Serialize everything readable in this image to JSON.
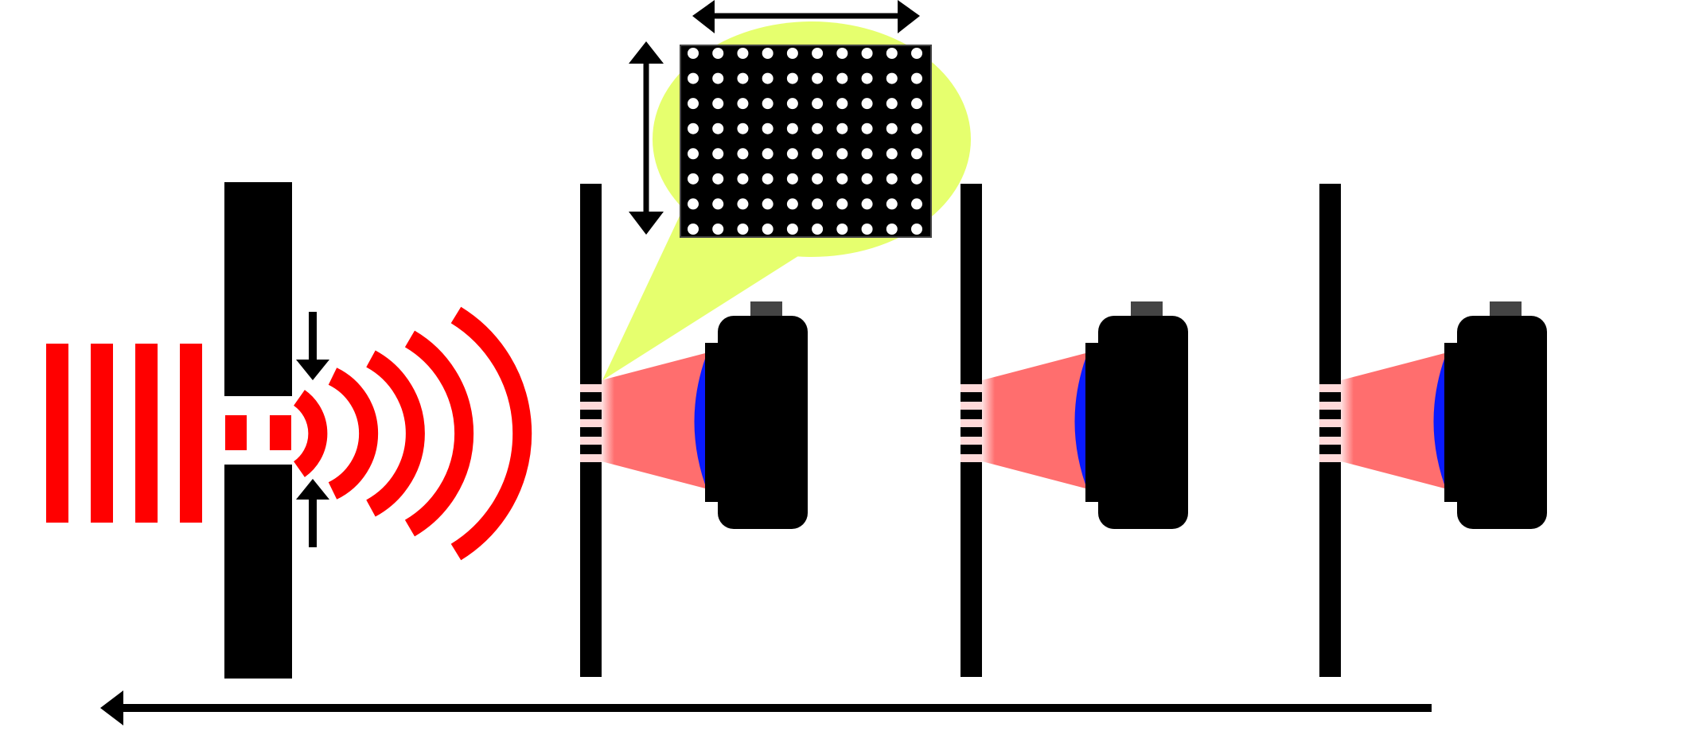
{
  "colors": {
    "background": "#ffffff",
    "wave": "#ff0000",
    "barrier": "#000000",
    "beam": "#ff6e6e",
    "beam_edge": "#ffd6d6",
    "lens": "#0a1aff",
    "camera_body": "#000000",
    "camera_cap": "#444444",
    "callout": "#e6ff6e",
    "dot": "#ffffff",
    "arrow": "#000000"
  },
  "icons": {
    "plane_wave": "plane-wave-fronts",
    "slit_barrier": "slit-barrier",
    "diffracted_wave": "circular-wave-fronts",
    "detector": "camera-icon",
    "pattern_inset": "dot-grid-pattern",
    "direction": "left-arrow"
  },
  "stations": [
    {
      "id": 1
    },
    {
      "id": 2
    },
    {
      "id": 3
    }
  ],
  "grid": {
    "rows": 8,
    "cols": 10
  }
}
